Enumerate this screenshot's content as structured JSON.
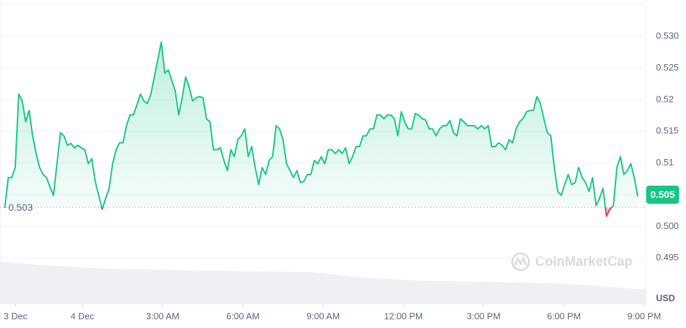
{
  "chart_data": {
    "type": "line",
    "currency": "USD",
    "watermark": "CoinMarketCap",
    "color": "#16c784",
    "down_color": "#ea3943",
    "grid": true,
    "baseline": 0.503,
    "last_price": 0.505,
    "xlim": [
      -3.08,
      21.05
    ],
    "xticks": [
      {
        "value": -2.5,
        "label": "3 Dec"
      },
      {
        "value": 0,
        "label": "4 Dec"
      },
      {
        "value": 3,
        "label": "3:00 AM"
      },
      {
        "value": 6,
        "label": "6:00 AM"
      },
      {
        "value": 9,
        "label": "9:00 AM"
      },
      {
        "value": 12,
        "label": "12:00 PM"
      },
      {
        "value": 15,
        "label": "3:00 PM"
      },
      {
        "value": 18,
        "label": "6:00 PM"
      },
      {
        "value": 21,
        "label": "9:00 PM"
      }
    ],
    "ylim": [
      0.4878,
      0.5352
    ],
    "yticks": [
      0.495,
      {
        "value": 0.5,
        "label": "0.500"
      },
      0.505,
      0.51,
      0.515,
      0.52,
      0.525,
      {
        "value": 0.53,
        "label": "0.530"
      }
    ],
    "x": [
      -2.9,
      -2.77,
      -2.64,
      -2.51,
      -2.38,
      -2.25,
      -2.12,
      -1.99,
      -1.86,
      -1.73,
      -1.6,
      -1.47,
      -1.34,
      -1.21,
      -1.08,
      -0.95,
      -0.82,
      -0.69,
      -0.56,
      -0.43,
      -0.3,
      -0.17,
      -0.04,
      0.09,
      0.22,
      0.35,
      0.48,
      0.61,
      0.74,
      0.87,
      1,
      1.13,
      1.26,
      1.39,
      1.52,
      1.65,
      1.78,
      1.91,
      2.04,
      2.17,
      2.3,
      2.43,
      2.56,
      2.69,
      2.82,
      2.95,
      3.08,
      3.21,
      3.34,
      3.47,
      3.6,
      3.73,
      3.86,
      3.99,
      4.12,
      4.25,
      4.38,
      4.51,
      4.64,
      4.77,
      4.9,
      5.03,
      5.16,
      5.29,
      5.42,
      5.55,
      5.68,
      5.81,
      5.94,
      6.07,
      6.2,
      6.33,
      6.46,
      6.59,
      6.72,
      6.85,
      6.98,
      7.11,
      7.24,
      7.37,
      7.5,
      7.63,
      7.76,
      7.89,
      8.02,
      8.15,
      8.28,
      8.41,
      8.54,
      8.67,
      8.8,
      8.93,
      9.06,
      9.19,
      9.32,
      9.45,
      9.58,
      9.71,
      9.84,
      9.97,
      10.1,
      10.23,
      10.36,
      10.49,
      10.62,
      10.75,
      10.88,
      11.01,
      11.14,
      11.27,
      11.4,
      11.53,
      11.66,
      11.79,
      11.92,
      12.05,
      12.18,
      12.31,
      12.44,
      12.57,
      12.7,
      12.83,
      12.96,
      13.09,
      13.22,
      13.35,
      13.48,
      13.61,
      13.74,
      13.87,
      14,
      14.13,
      14.26,
      14.39,
      14.52,
      14.65,
      14.78,
      14.91,
      15.04,
      15.17,
      15.3,
      15.43,
      15.56,
      15.69,
      15.82,
      15.95,
      16.08,
      16.21,
      16.34,
      16.47,
      16.6,
      16.73,
      16.86,
      16.99,
      17.12,
      17.25,
      17.38,
      17.51,
      17.64,
      17.77,
      17.9,
      18.03,
      18.16,
      18.29,
      18.42,
      18.55,
      18.68,
      18.81,
      18.94,
      19.07,
      19.2,
      19.33,
      19.46,
      19.59,
      19.72,
      19.85,
      19.98,
      20.11,
      20.24,
      20.37,
      20.5,
      20.63,
      20.76
    ],
    "values": [
      0.5029,
      0.5077,
      0.5077,
      0.5093,
      0.5209,
      0.5198,
      0.5165,
      0.5183,
      0.5143,
      0.5115,
      0.5093,
      0.5082,
      0.5077,
      0.5062,
      0.5049,
      0.5099,
      0.5148,
      0.5143,
      0.5128,
      0.5131,
      0.5124,
      0.5128,
      0.5124,
      0.5121,
      0.5099,
      0.5107,
      0.5071,
      0.5049,
      0.5027,
      0.5044,
      0.506,
      0.5099,
      0.5121,
      0.5132,
      0.5132,
      0.5159,
      0.5176,
      0.5176,
      0.5192,
      0.5209,
      0.5198,
      0.5194,
      0.5209,
      0.5236,
      0.5264,
      0.5291,
      0.5242,
      0.5247,
      0.5231,
      0.5214,
      0.5176,
      0.5203,
      0.5236,
      0.522,
      0.5198,
      0.5203,
      0.5205,
      0.5203,
      0.517,
      0.5165,
      0.5121,
      0.5121,
      0.5124,
      0.5104,
      0.5088,
      0.5121,
      0.511,
      0.5137,
      0.5143,
      0.5154,
      0.511,
      0.5126,
      0.5093,
      0.5066,
      0.5093,
      0.5082,
      0.5104,
      0.511,
      0.5159,
      0.5154,
      0.5137,
      0.5099,
      0.5088,
      0.5077,
      0.5088,
      0.5069,
      0.5071,
      0.5082,
      0.5082,
      0.5104,
      0.5099,
      0.511,
      0.5099,
      0.5121,
      0.5121,
      0.5115,
      0.5121,
      0.5115,
      0.5124,
      0.5099,
      0.511,
      0.5126,
      0.5126,
      0.5143,
      0.5143,
      0.5154,
      0.5154,
      0.5176,
      0.5176,
      0.517,
      0.5176,
      0.5176,
      0.517,
      0.5143,
      0.5181,
      0.5165,
      0.5154,
      0.5154,
      0.5178,
      0.5176,
      0.517,
      0.5168,
      0.5154,
      0.5154,
      0.5143,
      0.5154,
      0.5159,
      0.5159,
      0.5167,
      0.5148,
      0.5143,
      0.517,
      0.5165,
      0.5159,
      0.5159,
      0.5159,
      0.5154,
      0.5159,
      0.5154,
      0.5159,
      0.5126,
      0.5126,
      0.5132,
      0.5128,
      0.5121,
      0.5137,
      0.5132,
      0.5154,
      0.5165,
      0.517,
      0.5181,
      0.5183,
      0.5183,
      0.5205,
      0.5194,
      0.517,
      0.5148,
      0.5143,
      0.5093,
      0.5055,
      0.5049,
      0.5066,
      0.5082,
      0.5066,
      0.5069,
      0.5093,
      0.5077,
      0.5069,
      0.5055,
      0.5077,
      0.5033,
      0.5044,
      0.506,
      0.5016,
      0.5027,
      0.5033,
      0.5093,
      0.511,
      0.5082,
      0.5088,
      0.5099,
      0.5077,
      0.5047
    ]
  }
}
